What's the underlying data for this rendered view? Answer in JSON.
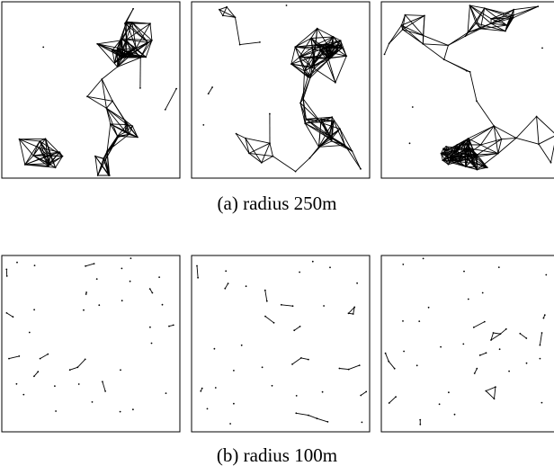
{
  "figure": {
    "captions": {
      "a": "(a) radius 250m",
      "b": "(b) radius 100m"
    },
    "colors": {
      "frame": "#000000",
      "edge": "#000000",
      "node": "#000000",
      "background": "#ffffff"
    }
  }
}
